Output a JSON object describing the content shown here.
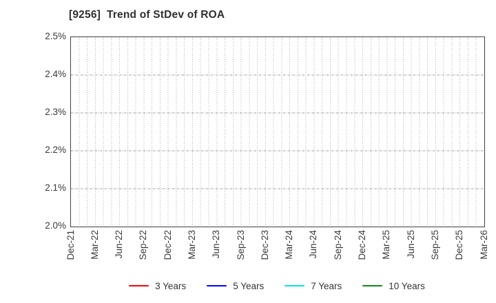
{
  "chart_data": {
    "type": "line",
    "title": "[9256]  Trend of StDev of ROA",
    "xlabel": "",
    "ylabel": "",
    "ylim": [
      2.0,
      2.5
    ],
    "ytick_step": 0.1,
    "y_ticklabels": [
      "2.5%",
      "2.4%",
      "2.3%",
      "2.2%",
      "2.1%",
      "2.0%"
    ],
    "x_ticklabels": [
      "Dec-21",
      "Mar-22",
      "Jun-22",
      "Sep-22",
      "Dec-22",
      "Mar-23",
      "Jun-23",
      "Sep-23",
      "Dec-23",
      "Mar-24",
      "Jun-24",
      "Sep-24",
      "Dec-24",
      "Mar-25",
      "Jun-25",
      "Sep-25",
      "Dec-25",
      "Mar-26"
    ],
    "x_minor_divisions": 51,
    "grid": true,
    "legend_position": "bottom",
    "series": [
      {
        "name": "3 Years",
        "color": "#ff0000",
        "values": []
      },
      {
        "name": "5 Years",
        "color": "#0000ff",
        "values": []
      },
      {
        "name": "7 Years",
        "color": "#00e5e5",
        "values": []
      },
      {
        "name": "10 Years",
        "color": "#0e8b0e",
        "values": []
      }
    ]
  },
  "colors": {
    "plot_border": "#3f3f3f",
    "grid_vertical": "#ababab",
    "grid_horizontal": "#999999",
    "text": "#3a3a3a"
  }
}
